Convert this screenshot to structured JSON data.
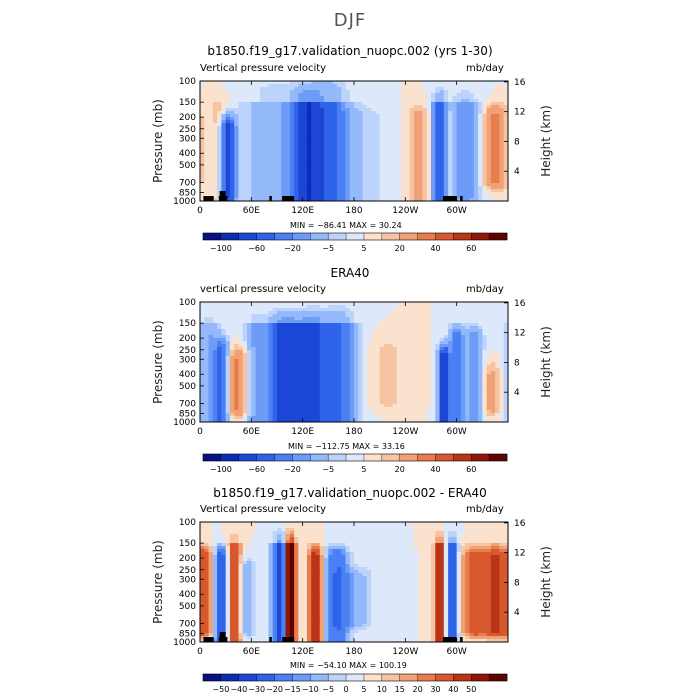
{
  "page": {
    "title": "DJF"
  },
  "colorbars": {
    "top": {
      "colors": [
        "#0a0f82",
        "#0d2cb4",
        "#1c47d6",
        "#2f64ea",
        "#4a80f4",
        "#6c9cf7",
        "#93b9fa",
        "#bcd3fb",
        "#dde9fb",
        "#fbe2cf",
        "#f6c4a3",
        "#f0a276",
        "#e77c4d",
        "#d8582e",
        "#bb3417",
        "#901708",
        "#5e0400"
      ],
      "labels": [
        {
          "i": 1,
          "t": "−100"
        },
        {
          "i": 3,
          "t": "−60"
        },
        {
          "i": 5,
          "t": "−20"
        },
        {
          "i": 7,
          "t": "−5"
        },
        {
          "i": 9,
          "t": "5"
        },
        {
          "i": 11,
          "t": "20"
        },
        {
          "i": 13,
          "t": "40"
        },
        {
          "i": 15,
          "t": "60"
        }
      ]
    },
    "bottom": {
      "colors": [
        "#0a0f82",
        "#0d2cb4",
        "#1c47d6",
        "#2f64ea",
        "#4a80f4",
        "#6c9cf7",
        "#93b9fa",
        "#bcd3fb",
        "#dde9fb",
        "#fbe2cf",
        "#f6c4a3",
        "#f0a276",
        "#e77c4d",
        "#d8582e",
        "#bb3417",
        "#901708",
        "#5e0400"
      ],
      "labels": [
        {
          "i": 1,
          "t": "−50"
        },
        {
          "i": 2,
          "t": "−40"
        },
        {
          "i": 3,
          "t": "−30"
        },
        {
          "i": 4,
          "t": "−20"
        },
        {
          "i": 5,
          "t": "−15"
        },
        {
          "i": 6,
          "t": "−10"
        },
        {
          "i": 7,
          "t": "−5"
        },
        {
          "i": 8,
          "t": "0"
        },
        {
          "i": 9,
          "t": "5"
        },
        {
          "i": 10,
          "t": "10"
        },
        {
          "i": 11,
          "t": "15"
        },
        {
          "i": 12,
          "t": "20"
        },
        {
          "i": 13,
          "t": "30"
        },
        {
          "i": 14,
          "t": "40"
        },
        {
          "i": 15,
          "t": "50"
        }
      ]
    }
  },
  "chart_data": [
    {
      "type": "heatmap",
      "title": "b1850.f19_g17.validation_nuopc.002 (yrs 1-30)",
      "variable": "Vertical pressure velocity",
      "units": "mb/day",
      "ylabel": "Pressure (mb)",
      "ylabel_right": "Height (km)",
      "x_ticks": [
        "0",
        "60E",
        "120E",
        "180",
        "120W",
        "60W"
      ],
      "y_ticks": [
        "100",
        "150",
        "200",
        "250",
        "300",
        "400",
        "500",
        "700",
        "850",
        "1000"
      ],
      "y_ticks_right": [
        "16",
        "12",
        "8",
        "4"
      ],
      "stats": "MIN = −86.41   MAX =  30.24",
      "min": -86.41,
      "max": 30.24,
      "features": [
        {
          "lon": 33,
          "top": 250,
          "bot": 900,
          "width": 8,
          "v": -70
        },
        {
          "lon": 22,
          "top": 150,
          "bot": 1000,
          "width": 12,
          "v": 8
        },
        {
          "lon": 90,
          "top": 120,
          "bot": 1000,
          "width": 40,
          "v": -18
        },
        {
          "lon": 125,
          "top": 140,
          "bot": 1000,
          "width": 16,
          "v": -60
        },
        {
          "lon": 150,
          "top": 120,
          "bot": 1000,
          "width": 22,
          "v": -40
        },
        {
          "lon": 175,
          "top": 200,
          "bot": 1000,
          "width": 40,
          "v": -10
        },
        {
          "lon": 255,
          "top": 200,
          "bot": 1000,
          "width": 14,
          "v": 12
        },
        {
          "lon": 280,
          "top": 150,
          "bot": 950,
          "width": 8,
          "v": -60
        },
        {
          "lon": 292,
          "top": 200,
          "bot": 1000,
          "width": 10,
          "v": 6
        },
        {
          "lon": 310,
          "top": 150,
          "bot": 900,
          "width": 16,
          "v": -30
        },
        {
          "lon": 345,
          "top": 200,
          "bot": 700,
          "width": 14,
          "v": 22
        }
      ]
    },
    {
      "type": "heatmap",
      "title": "ERA40",
      "variable": "vertical pressure velocity",
      "units": "mb/day",
      "ylabel": "Pressure (mb)",
      "ylabel_right": "Height (km)",
      "x_ticks": [
        "0",
        "60E",
        "120E",
        "180",
        "120W",
        "60W"
      ],
      "y_ticks": [
        "100",
        "150",
        "200",
        "250",
        "300",
        "400",
        "500",
        "700",
        "850",
        "1000"
      ],
      "y_ticks_right": [
        "16",
        "12",
        "8",
        "4"
      ],
      "stats": "MIN = −112.75   MAX =  33.16",
      "min": -112.75,
      "max": 33.16,
      "features": [
        {
          "lon": 10,
          "top": 150,
          "bot": 1000,
          "width": 12,
          "v": -20
        },
        {
          "lon": 25,
          "top": 250,
          "bot": 1000,
          "width": 8,
          "v": -40
        },
        {
          "lon": 45,
          "top": 300,
          "bot": 800,
          "width": 12,
          "v": 22
        },
        {
          "lon": 65,
          "top": 150,
          "bot": 1000,
          "width": 12,
          "v": -20
        },
        {
          "lon": 100,
          "top": 150,
          "bot": 1000,
          "width": 20,
          "v": -70
        },
        {
          "lon": 130,
          "top": 150,
          "bot": 1000,
          "width": 14,
          "v": -65
        },
        {
          "lon": 160,
          "top": 140,
          "bot": 1000,
          "width": 20,
          "v": -45
        },
        {
          "lon": 220,
          "top": 250,
          "bot": 700,
          "width": 20,
          "v": 6
        },
        {
          "lon": 285,
          "top": 300,
          "bot": 1000,
          "width": 6,
          "v": -90
        },
        {
          "lon": 300,
          "top": 200,
          "bot": 1000,
          "width": 8,
          "v": -40
        },
        {
          "lon": 320,
          "top": 200,
          "bot": 1000,
          "width": 10,
          "v": -25
        },
        {
          "lon": 340,
          "top": 400,
          "bot": 800,
          "width": 10,
          "v": 12
        }
      ]
    },
    {
      "type": "heatmap",
      "title": "b1850.f19_g17.validation_nuopc.002 - ERA40",
      "variable": "Vertical pressure velocity",
      "units": "mb/day",
      "ylabel": "Pressure (mb)",
      "ylabel_right": "Height (km)",
      "x_ticks": [
        "0",
        "60E",
        "120E",
        "180",
        "120W",
        "60W"
      ],
      "y_ticks": [
        "100",
        "150",
        "200",
        "250",
        "300",
        "400",
        "500",
        "700",
        "850",
        "1000"
      ],
      "y_ticks_right": [
        "16",
        "12",
        "8",
        "4"
      ],
      "stats": "MIN = −54.10   MAX = 100.19",
      "min": -54.1,
      "max": 100.19,
      "features": [
        {
          "lon": 5,
          "top": 200,
          "bot": 800,
          "width": 10,
          "v": 25
        },
        {
          "lon": 25,
          "top": 200,
          "bot": 1000,
          "width": 8,
          "v": -40
        },
        {
          "lon": 40,
          "top": 150,
          "bot": 1000,
          "width": 8,
          "v": 30
        },
        {
          "lon": 55,
          "top": 250,
          "bot": 800,
          "width": 10,
          "v": -15
        },
        {
          "lon": 95,
          "top": 150,
          "bot": 1000,
          "width": 10,
          "v": -50
        },
        {
          "lon": 105,
          "top": 150,
          "bot": 1000,
          "width": 6,
          "v": 90
        },
        {
          "lon": 135,
          "top": 200,
          "bot": 1000,
          "width": 8,
          "v": 40
        },
        {
          "lon": 160,
          "top": 200,
          "bot": 1000,
          "width": 14,
          "v": -30
        },
        {
          "lon": 185,
          "top": 300,
          "bot": 700,
          "width": 18,
          "v": -12
        },
        {
          "lon": 280,
          "top": 150,
          "bot": 1000,
          "width": 6,
          "v": 40
        },
        {
          "lon": 295,
          "top": 150,
          "bot": 1000,
          "width": 6,
          "v": -45
        },
        {
          "lon": 320,
          "top": 200,
          "bot": 800,
          "width": 14,
          "v": 25
        },
        {
          "lon": 345,
          "top": 200,
          "bot": 800,
          "width": 14,
          "v": 30
        }
      ]
    }
  ]
}
